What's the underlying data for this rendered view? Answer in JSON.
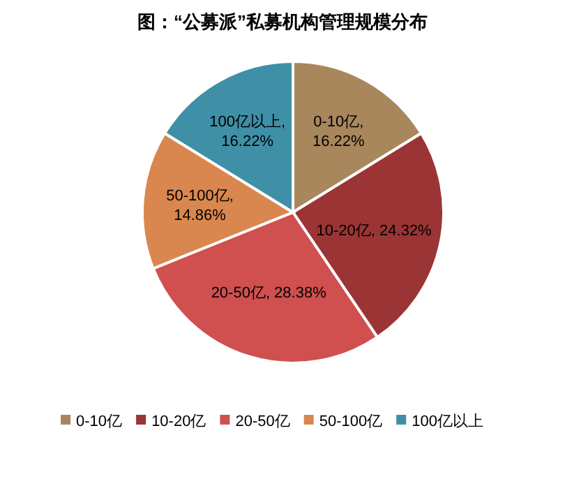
{
  "chart_data": {
    "type": "pie",
    "title": "图：“公募派”私募机构管理规模分布",
    "categories": [
      "0-10亿",
      "10-20亿",
      "20-50亿",
      "50-100亿",
      "100亿以上"
    ],
    "values": [
      16.22,
      24.32,
      28.38,
      14.86,
      16.22
    ],
    "colors": [
      "#a8875c",
      "#9b3434",
      "#d04f4f",
      "#d9874e",
      "#3f8fa6"
    ],
    "value_labels": [
      "0-10亿,\n16.22%",
      "10-20亿, 24.32%",
      "20-50亿, 28.38%",
      "50-100亿,\n14.86%",
      "100亿以上,\n16.22%"
    ],
    "legend": "bottom"
  }
}
